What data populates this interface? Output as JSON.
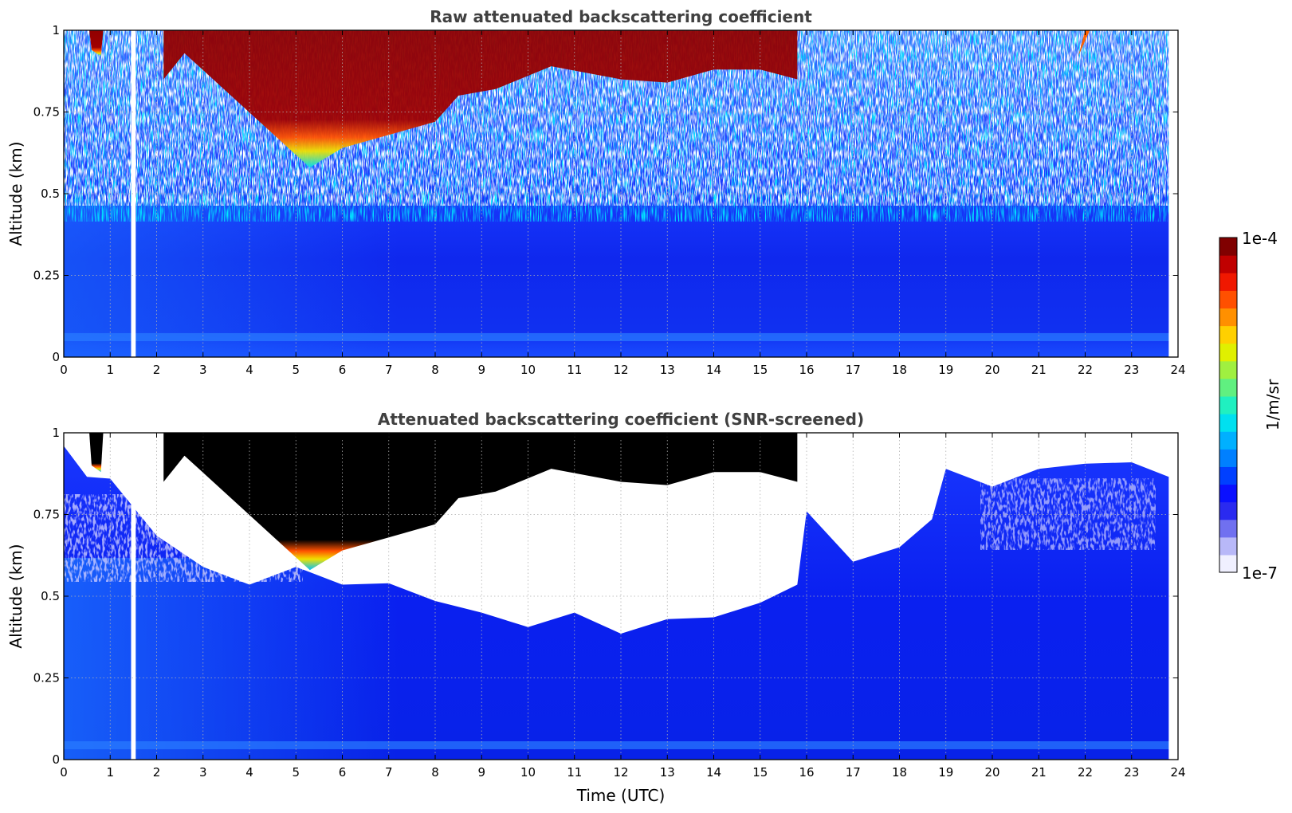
{
  "chart_data": [
    {
      "type": "heatmap",
      "title": "Raw attenuated backscattering coefficient",
      "xlabel": "",
      "ylabel": "Altitude (km)",
      "xlim": [
        0,
        24
      ],
      "ylim": [
        0,
        1
      ],
      "x_ticks": [
        "0",
        "1",
        "2",
        "3",
        "4",
        "5",
        "6",
        "7",
        "8",
        "9",
        "10",
        "11",
        "12",
        "13",
        "14",
        "15",
        "16",
        "17",
        "18",
        "19",
        "20",
        "21",
        "22",
        "23",
        "24"
      ],
      "y_ticks": [
        "0",
        "0.25",
        "0.5",
        "0.75",
        "1"
      ],
      "grid": true,
      "data_gap_utc": [
        1.45,
        1.55
      ],
      "data_end_utc": 23.8,
      "cloud_base_profile_km": [
        [
          2.15,
          0.85
        ],
        [
          2.6,
          0.93
        ],
        [
          5.3,
          0.58
        ],
        [
          6.0,
          0.64
        ],
        [
          7.0,
          0.68
        ],
        [
          8.0,
          0.72
        ],
        [
          8.5,
          0.8
        ],
        [
          9.3,
          0.82
        ],
        [
          10.5,
          0.89
        ],
        [
          12.0,
          0.85
        ],
        [
          13.0,
          0.84
        ],
        [
          14.0,
          0.88
        ],
        [
          15.0,
          0.88
        ],
        [
          15.8,
          0.85
        ]
      ],
      "scale": "log"
    },
    {
      "type": "heatmap",
      "title": "Attenuated backscattering coefficient (SNR-screened)",
      "xlabel": "Time (UTC)",
      "ylabel": "Altitude (km)",
      "xlim": [
        0,
        24
      ],
      "ylim": [
        0,
        1
      ],
      "x_ticks": [
        "0",
        "1",
        "2",
        "3",
        "4",
        "5",
        "6",
        "7",
        "8",
        "9",
        "10",
        "11",
        "12",
        "13",
        "14",
        "15",
        "16",
        "17",
        "18",
        "19",
        "20",
        "21",
        "22",
        "23",
        "24"
      ],
      "y_ticks": [
        "0",
        "0.25",
        "0.5",
        "0.75",
        "1"
      ],
      "grid": true,
      "data_gap_utc": [
        1.45,
        1.55
      ],
      "data_end_utc": 23.8,
      "screened_top_profile_km": [
        [
          0,
          0.95
        ],
        [
          0.5,
          0.88
        ],
        [
          1.0,
          0.85
        ],
        [
          2.0,
          0.7
        ],
        [
          3.0,
          0.58
        ],
        [
          4.0,
          0.55
        ],
        [
          5.0,
          0.58
        ],
        [
          6.0,
          0.55
        ],
        [
          7.0,
          0.53
        ],
        [
          8.0,
          0.5
        ],
        [
          9.0,
          0.44
        ],
        [
          10.0,
          0.42
        ],
        [
          11.0,
          0.44
        ],
        [
          12.0,
          0.4
        ],
        [
          13.0,
          0.42
        ],
        [
          14.0,
          0.45
        ],
        [
          15.0,
          0.47
        ],
        [
          15.8,
          0.55
        ],
        [
          16.0,
          0.75
        ],
        [
          17.0,
          0.62
        ],
        [
          18.0,
          0.64
        ],
        [
          18.7,
          0.75
        ],
        [
          19.0,
          0.88
        ],
        [
          20.0,
          0.85
        ],
        [
          21.0,
          0.88
        ],
        [
          22.0,
          0.92
        ],
        [
          23.0,
          0.9
        ],
        [
          23.8,
          0.88
        ]
      ]
    }
  ],
  "colorbar": {
    "label": "1/m/sr",
    "max_label": "1e-4",
    "min_label": "1e-7",
    "scale": "log",
    "colors": [
      "#f0f0ff",
      "#b8b8f8",
      "#7070f0",
      "#2a2af0",
      "#0a10ff",
      "#0040ff",
      "#0080ff",
      "#00b0ff",
      "#00e0f0",
      "#20f0c0",
      "#60f080",
      "#a0f040",
      "#e0f000",
      "#ffd000",
      "#ff9000",
      "#ff5000",
      "#f01800",
      "#c00000",
      "#800000"
    ]
  }
}
